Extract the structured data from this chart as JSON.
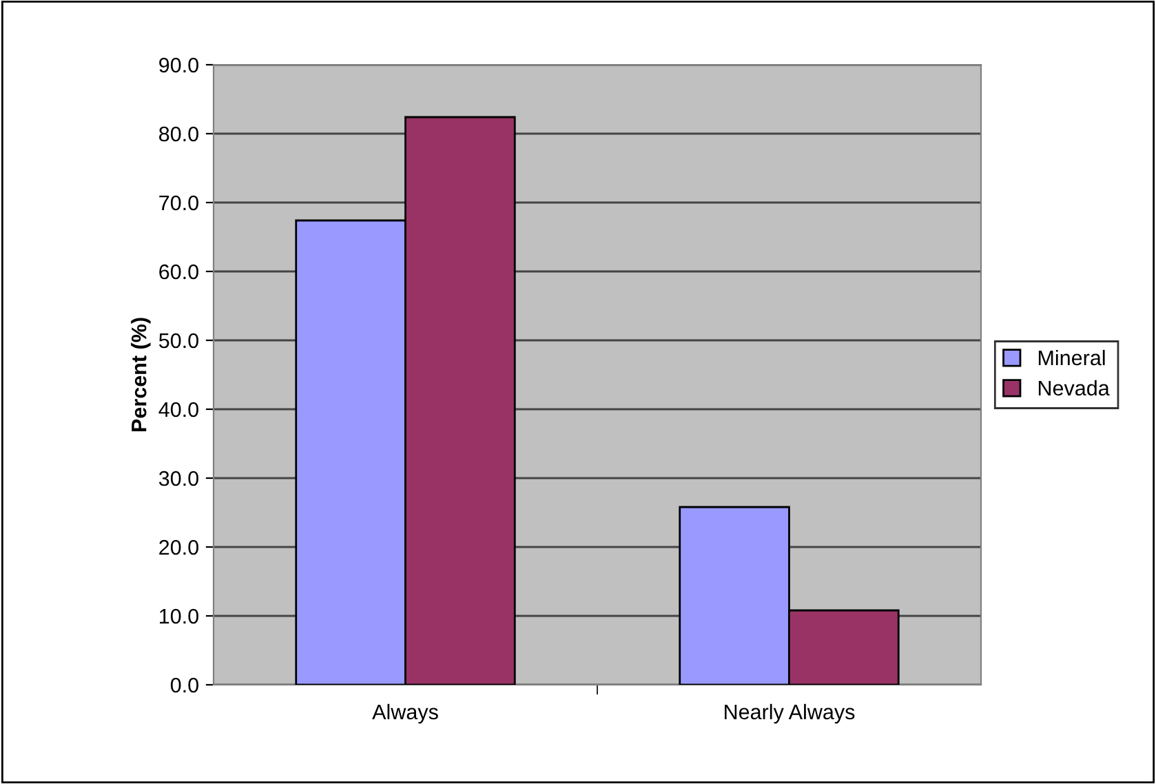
{
  "chart_data": {
    "type": "bar",
    "ylabel": "Percent (%)",
    "categories": [
      "Always",
      "Nearly Always"
    ],
    "series": [
      {
        "name": "Mineral",
        "color": "#9999ff",
        "values": [
          67.4,
          25.8
        ]
      },
      {
        "name": "Nevada",
        "color": "#993366",
        "values": [
          82.4,
          10.8
        ]
      }
    ],
    "ylim": [
      0,
      90
    ],
    "yticks": [
      {
        "value": 0,
        "label": "0.0"
      },
      {
        "value": 10,
        "label": "10.0"
      },
      {
        "value": 20,
        "label": "20.0"
      },
      {
        "value": 30,
        "label": "30.0"
      },
      {
        "value": 40,
        "label": "40.0"
      },
      {
        "value": 50,
        "label": "50.0"
      },
      {
        "value": 60,
        "label": "60.0"
      },
      {
        "value": 70,
        "label": "70.0"
      },
      {
        "value": 80,
        "label": "80.0"
      },
      {
        "value": 90,
        "label": "90.0"
      }
    ],
    "grid": "y",
    "legend": "right"
  }
}
